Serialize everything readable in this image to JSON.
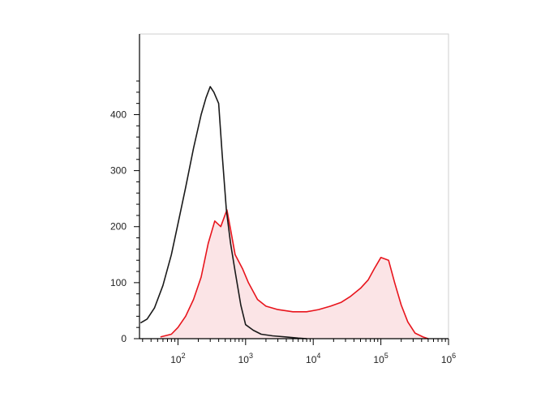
{
  "chart_data": {
    "type": "area",
    "title": "",
    "xlabel": "",
    "ylabel": "",
    "x_scale": "log",
    "xlim": [
      27,
      1000000
    ],
    "ylim": [
      0,
      460
    ],
    "grid": false,
    "y_ticks": [
      {
        "value": 0,
        "label": "0"
      },
      {
        "value": 100,
        "label": "100"
      },
      {
        "value": 200,
        "label": "200"
      },
      {
        "value": 300,
        "label": "300"
      },
      {
        "value": 400,
        "label": "400"
      }
    ],
    "x_ticks": [
      {
        "value": 100,
        "base": "10",
        "exp": "2"
      },
      {
        "value": 1000,
        "base": "10",
        "exp": "3"
      },
      {
        "value": 10000,
        "base": "10",
        "exp": "4"
      },
      {
        "value": 100000,
        "base": "10",
        "exp": "5"
      },
      {
        "value": 1000000,
        "base": "10",
        "exp": "6"
      }
    ],
    "series": [
      {
        "color": "#1a1a1a",
        "filled": false,
        "points": [
          [
            28,
            28
          ],
          [
            35,
            35
          ],
          [
            45,
            55
          ],
          [
            60,
            95
          ],
          [
            80,
            150
          ],
          [
            100,
            205
          ],
          [
            130,
            270
          ],
          [
            170,
            340
          ],
          [
            220,
            400
          ],
          [
            260,
            430
          ],
          [
            300,
            450
          ],
          [
            340,
            440
          ],
          [
            400,
            420
          ],
          [
            450,
            330
          ],
          [
            520,
            230
          ],
          [
            600,
            170
          ],
          [
            700,
            120
          ],
          [
            850,
            60
          ],
          [
            1000,
            25
          ],
          [
            1300,
            15
          ],
          [
            1700,
            8
          ],
          [
            2500,
            5
          ],
          [
            4000,
            3
          ],
          [
            6000,
            1
          ],
          [
            8000,
            0
          ]
        ]
      },
      {
        "color": "#e8141c",
        "fill": "#fbe4e6",
        "filled": true,
        "points": [
          [
            55,
            3
          ],
          [
            80,
            8
          ],
          [
            100,
            20
          ],
          [
            130,
            40
          ],
          [
            170,
            70
          ],
          [
            220,
            110
          ],
          [
            280,
            170
          ],
          [
            350,
            210
          ],
          [
            430,
            200
          ],
          [
            530,
            230
          ],
          [
            600,
            195
          ],
          [
            700,
            150
          ],
          [
            900,
            125
          ],
          [
            1100,
            100
          ],
          [
            1500,
            70
          ],
          [
            2000,
            58
          ],
          [
            3000,
            52
          ],
          [
            5000,
            48
          ],
          [
            8000,
            48
          ],
          [
            12000,
            52
          ],
          [
            18000,
            58
          ],
          [
            26000,
            65
          ],
          [
            35000,
            75
          ],
          [
            50000,
            90
          ],
          [
            65000,
            105
          ],
          [
            80000,
            125
          ],
          [
            100000,
            145
          ],
          [
            130000,
            140
          ],
          [
            160000,
            100
          ],
          [
            200000,
            60
          ],
          [
            250000,
            30
          ],
          [
            320000,
            10
          ],
          [
            420000,
            3
          ],
          [
            500000,
            0
          ]
        ]
      }
    ]
  }
}
